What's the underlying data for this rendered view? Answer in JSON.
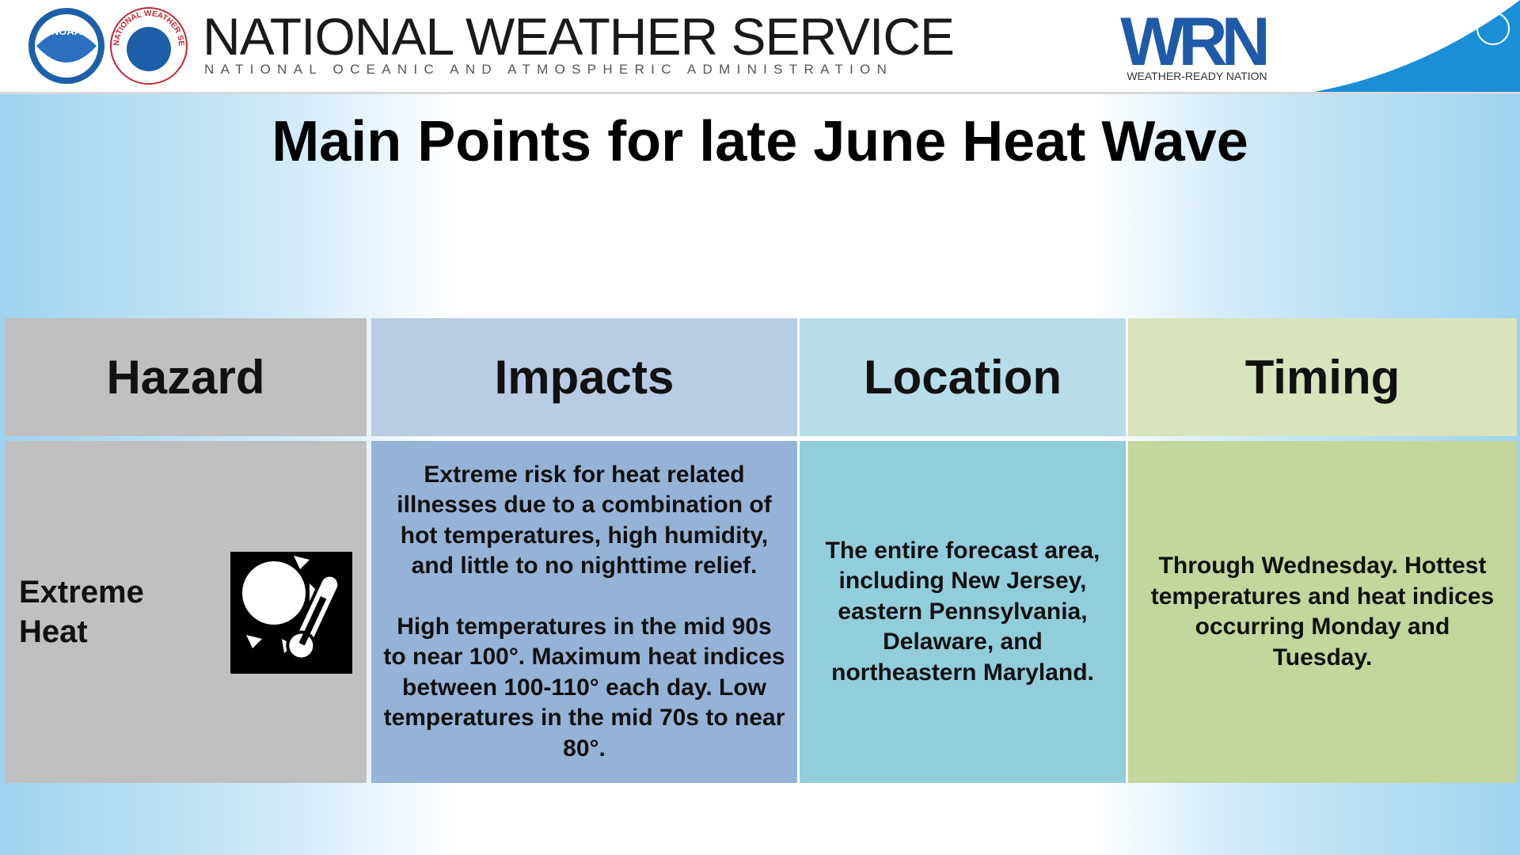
{
  "header": {
    "noaa_logo": "NOAA",
    "nws_logo": "NATIONAL WEATHER SERVICE",
    "title": "NATIONAL WEATHER SERVICE",
    "subtitle": "NATIONAL OCEANIC AND ATMOSPHERIC ADMINISTRATION",
    "wrn_logo": "WRN",
    "wrn_tagline": "WEATHER-READY NATION"
  },
  "slide_title": "Main Points for late June Heat Wave",
  "table": {
    "headers": [
      "Hazard",
      "Impacts",
      "Location",
      "Timing"
    ],
    "rows": [
      {
        "hazard": "Extreme Heat",
        "impacts": [
          "Extreme risk for heat related illnesses due to a combination of hot temperatures, high humidity, and little to no nighttime relief.",
          "High temperatures in the mid 90s to near 100°. Maximum heat indices between 100-110° each day. Low temperatures in the mid 70s to near 80°."
        ],
        "location": "The entire forecast area, including New Jersey, eastern Pennsylvania, Delaware, and northeastern Maryland.",
        "timing": "Through Wednesday. Hottest temperatures and heat indices occurring Monday and Tuesday."
      }
    ]
  }
}
